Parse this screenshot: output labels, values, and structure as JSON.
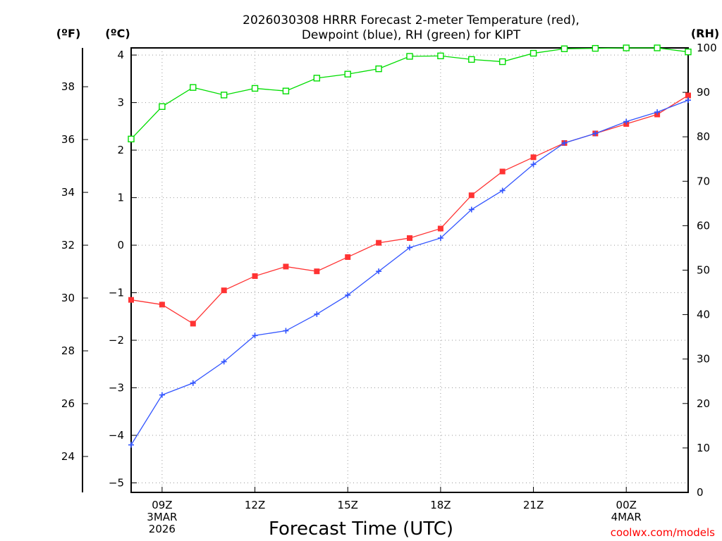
{
  "chart_data": {
    "type": "line",
    "title_lines": [
      "2026030308 HRRR Forecast 2-meter Temperature (red),",
      "Dewpoint (blue), RH (green) for KIPT"
    ],
    "xlabel": "Forecast Time (UTC)",
    "credit": "coolwx.com/models",
    "units": {
      "left_outer": "(ºF)",
      "left_inner": "(ºC)",
      "right": "(RH)"
    },
    "x_hours": [
      8,
      9,
      10,
      11,
      12,
      13,
      14,
      15,
      16,
      17,
      18,
      19,
      20,
      21,
      22,
      23,
      24,
      25,
      26
    ],
    "xlim": [
      8,
      26
    ],
    "x_ticks": [
      {
        "hour": 9,
        "lines": [
          "09Z",
          "3MAR",
          "2026"
        ]
      },
      {
        "hour": 12,
        "lines": [
          "12Z"
        ]
      },
      {
        "hour": 15,
        "lines": [
          "15Z"
        ]
      },
      {
        "hour": 18,
        "lines": [
          "18Z"
        ]
      },
      {
        "hour": 21,
        "lines": [
          "21Z"
        ]
      },
      {
        "hour": 24,
        "lines": [
          "00Z",
          "4MAR"
        ]
      }
    ],
    "y_celsius": {
      "min": -5.2,
      "max": 4.15,
      "ticks": [
        -5,
        -4,
        -3,
        -2,
        -1,
        0,
        1,
        2,
        3,
        4
      ]
    },
    "y_fahrenheit": {
      "ticks": [
        24,
        26,
        28,
        30,
        32,
        34,
        36,
        38
      ]
    },
    "y_rh": {
      "min": 0,
      "max": 100,
      "ticks": [
        0,
        10,
        20,
        30,
        40,
        50,
        60,
        70,
        80,
        90,
        100
      ]
    },
    "series": [
      {
        "name": "Temperature",
        "axis": "celsius",
        "color": "#ff3333",
        "marker": "filled-square",
        "values": [
          -1.15,
          -1.25,
          -1.65,
          -0.95,
          -0.65,
          -0.45,
          -0.55,
          -0.25,
          0.05,
          0.15,
          0.35,
          1.05,
          1.55,
          1.85,
          2.15,
          2.35,
          2.55,
          2.75,
          3.15
        ]
      },
      {
        "name": "Dewpoint",
        "axis": "celsius",
        "color": "#3355ff",
        "marker": "plus",
        "values": [
          -4.2,
          -3.15,
          -2.9,
          -2.45,
          -1.9,
          -1.8,
          -1.45,
          -1.05,
          -0.55,
          -0.05,
          0.15,
          0.75,
          1.15,
          1.7,
          2.15,
          2.35,
          2.6,
          2.8,
          3.05
        ]
      },
      {
        "name": "RH",
        "axis": "rh",
        "color": "#00dd00",
        "marker": "open-square",
        "values": [
          79.5,
          86.8,
          91.1,
          89.4,
          90.9,
          90.3,
          93.2,
          94.1,
          95.3,
          98.1,
          98.2,
          97.4,
          96.9,
          98.8,
          99.8,
          99.9,
          100,
          100,
          99.1
        ]
      }
    ]
  }
}
